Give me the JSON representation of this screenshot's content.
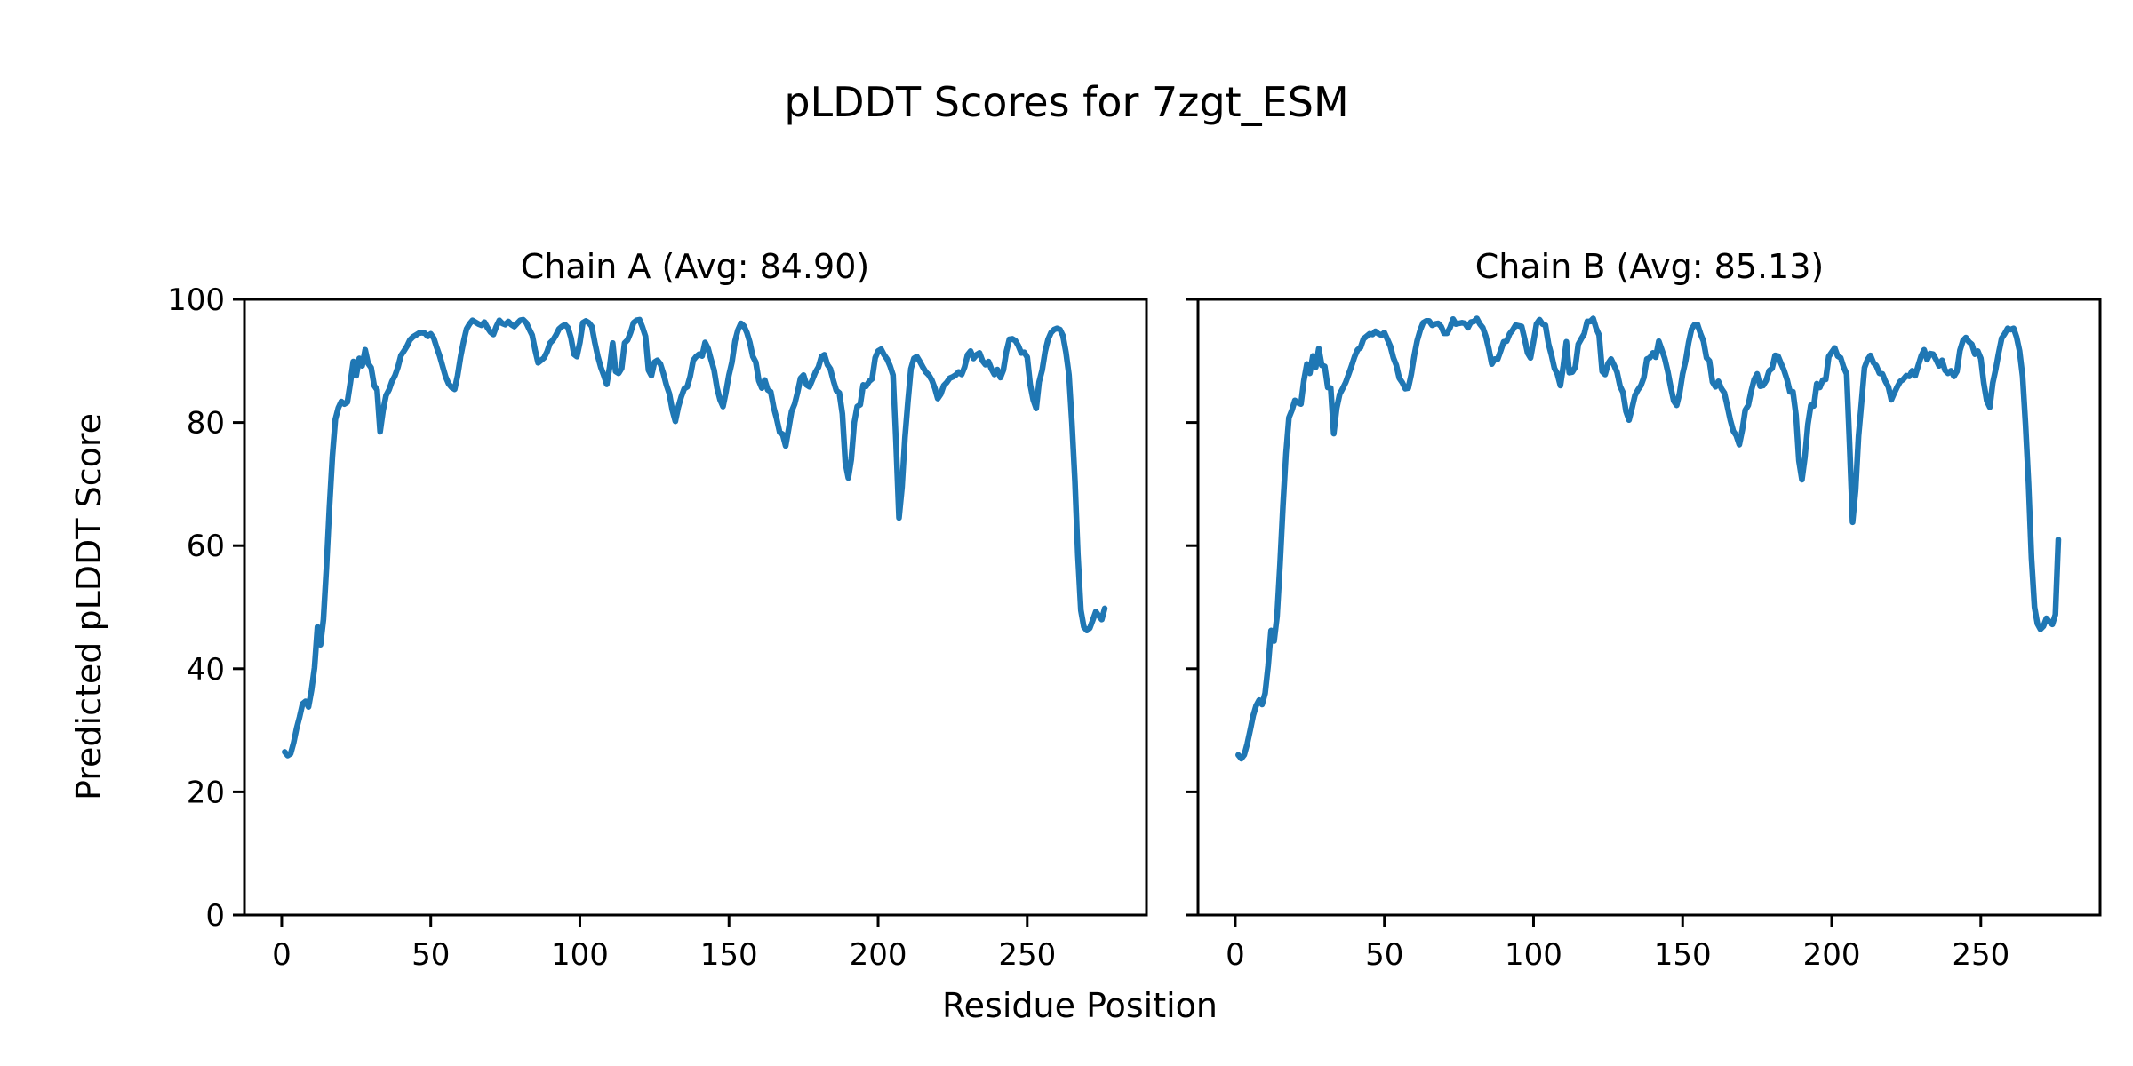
{
  "figure": {
    "suptitle": "pLDDT Scores for 7zgt_ESM",
    "xlabel": "Residue Position",
    "ylabel": "Predicted pLDDT Score",
    "background_color": "#ffffff",
    "axis_color": "#000000",
    "line_color": "#1f77b4"
  },
  "chart_data": {
    "type": "line",
    "title": "pLDDT Scores for 7zgt_ESM",
    "xlabel": "Residue Position",
    "ylabel": "Predicted pLDDT Score",
    "grid": false,
    "legend": false,
    "xlim": [
      -12.5,
      290
    ],
    "ylim": [
      0,
      100
    ],
    "xticks": [
      0,
      50,
      100,
      150,
      200,
      250
    ],
    "yticks": [
      0,
      20,
      40,
      60,
      80,
      100
    ],
    "x_start_residue": 1,
    "line_color": "#1f77b4",
    "panels": [
      {
        "title": "Chain A (Avg: 84.90)",
        "name": "Chain A",
        "avg": 84.9,
        "values": [
          26.5,
          25.9,
          26.2,
          28.0,
          30.3,
          32.2,
          34.3,
          34.7,
          33.8,
          36.5,
          40.2,
          46.8,
          43.9,
          48.0,
          56.5,
          66.0,
          74.5,
          80.5,
          82.4,
          83.4,
          83.0,
          83.3,
          86.4,
          89.9,
          87.6,
          90.4,
          89.2,
          91.8,
          89.6,
          88.9,
          86.0,
          85.3,
          78.5,
          81.9,
          84.4,
          85.3,
          86.7,
          87.6,
          89.0,
          90.9,
          91.6,
          92.4,
          93.4,
          93.9,
          94.2,
          94.5,
          94.6,
          94.5,
          94.0,
          94.4,
          93.7,
          92.2,
          90.8,
          89.1,
          87.4,
          86.3,
          85.7,
          85.4,
          87.6,
          90.7,
          93.1,
          95.2,
          96.0,
          96.6,
          96.3,
          96.0,
          95.8,
          96.3,
          95.4,
          94.7,
          94.3,
          95.6,
          96.6,
          96.1,
          95.9,
          96.4,
          95.9,
          95.6,
          96.1,
          96.6,
          96.7,
          96.2,
          95.2,
          94.2,
          91.8,
          89.7,
          90.1,
          90.5,
          91.5,
          92.9,
          93.4,
          94.2,
          95.2,
          95.6,
          95.9,
          95.4,
          93.8,
          91.1,
          90.7,
          93.0,
          96.2,
          96.5,
          96.2,
          95.6,
          93.0,
          90.8,
          89.0,
          87.7,
          86.2,
          89.0,
          92.9,
          88.3,
          88.0,
          88.8,
          92.9,
          93.4,
          94.6,
          96.2,
          96.6,
          96.7,
          95.5,
          94.0,
          88.5,
          87.6,
          89.8,
          90.1,
          89.5,
          88.0,
          86.1,
          84.7,
          82.0,
          80.2,
          82.5,
          84.2,
          85.5,
          85.8,
          87.5,
          90.1,
          90.7,
          91.1,
          90.8,
          93.0,
          92.0,
          90.2,
          88.5,
          85.6,
          83.7,
          82.6,
          85.0,
          87.7,
          89.8,
          93.2,
          95.0,
          96.1,
          95.7,
          94.6,
          93.0,
          90.7,
          89.8,
          86.8,
          85.6,
          86.9,
          85.3,
          85.0,
          82.4,
          80.6,
          78.4,
          78.1,
          76.2,
          79.0,
          81.8,
          83.0,
          84.9,
          87.2,
          87.7,
          86.1,
          85.8,
          87.0,
          88.2,
          89.0,
          90.7,
          91.0,
          89.4,
          88.7,
          86.8,
          85.2,
          84.8,
          81.4,
          73.5,
          71.0,
          74.0,
          80.0,
          82.6,
          82.9,
          86.1,
          85.9,
          86.7,
          87.1,
          90.5,
          91.6,
          91.9,
          91.0,
          90.3,
          89.2,
          87.7,
          77.0,
          64.5,
          69.5,
          77.5,
          83.5,
          88.7,
          90.4,
          90.7,
          89.9,
          89.0,
          88.2,
          87.7,
          86.9,
          85.6,
          83.9,
          84.6,
          86.0,
          86.5,
          87.2,
          87.4,
          87.7,
          88.2,
          87.8,
          89.0,
          91.0,
          91.6,
          90.4,
          91.0,
          91.3,
          90.0,
          89.4,
          89.9,
          88.7,
          87.8,
          88.6,
          87.3,
          88.5,
          91.5,
          93.5,
          93.6,
          93.3,
          92.5,
          91.3,
          91.4,
          90.6,
          86.2,
          83.7,
          82.3,
          86.6,
          88.5,
          91.5,
          93.5,
          94.6,
          95.1,
          95.3,
          95.1,
          94.1,
          91.4,
          87.7,
          80.0,
          70.5,
          58.5,
          49.5,
          46.8,
          46.2,
          46.6,
          47.9,
          49.3,
          48.6,
          48.0,
          49.8
        ]
      },
      {
        "title": "Chain B (Avg: 85.13)",
        "name": "Chain B",
        "avg": 85.13,
        "values": [
          26.0,
          25.4,
          26.0,
          27.8,
          30.0,
          32.4,
          34.0,
          34.9,
          34.2,
          36.0,
          40.5,
          46.2,
          44.5,
          48.5,
          57.0,
          66.5,
          75.0,
          80.8,
          82.0,
          83.6,
          83.2,
          83.0,
          86.8,
          89.5,
          88.0,
          90.8,
          89.0,
          92.0,
          89.3,
          89.1,
          85.7,
          85.6,
          78.2,
          82.3,
          84.6,
          85.5,
          86.5,
          87.8,
          89.2,
          90.7,
          91.8,
          92.2,
          93.6,
          94.0,
          94.4,
          94.3,
          94.8,
          94.4,
          94.2,
          94.6,
          93.5,
          92.4,
          90.5,
          89.3,
          87.2,
          86.5,
          85.5,
          85.6,
          87.8,
          90.9,
          93.3,
          95.0,
          96.2,
          96.5,
          96.5,
          95.8,
          96.0,
          96.1,
          95.6,
          94.5,
          94.5,
          95.4,
          96.8,
          96.0,
          96.1,
          96.2,
          96.1,
          95.4,
          96.3,
          96.4,
          96.9,
          96.0,
          95.4,
          94.0,
          92.0,
          89.5,
          90.3,
          90.3,
          91.7,
          93.1,
          93.2,
          94.4,
          95.0,
          95.8,
          95.7,
          95.6,
          93.6,
          91.3,
          90.5,
          93.2,
          96.0,
          96.7,
          96.0,
          95.8,
          92.8,
          91.0,
          88.8,
          87.9,
          86.0,
          89.2,
          93.1,
          88.1,
          88.2,
          89.0,
          92.7,
          93.6,
          94.4,
          96.4,
          96.4,
          96.9,
          95.3,
          94.2,
          88.3,
          87.8,
          89.6,
          90.3,
          89.3,
          88.2,
          85.9,
          84.9,
          81.8,
          80.4,
          82.3,
          84.4,
          85.3,
          86.0,
          87.3,
          90.3,
          90.5,
          91.3,
          90.6,
          93.2,
          91.8,
          90.4,
          88.3,
          85.8,
          83.5,
          82.8,
          84.8,
          87.9,
          90.0,
          93.0,
          95.2,
          95.9,
          95.9,
          94.4,
          93.2,
          90.5,
          90.0,
          86.6,
          85.8,
          86.7,
          85.5,
          84.8,
          82.6,
          80.4,
          78.6,
          77.9,
          76.4,
          78.8,
          82.0,
          82.8,
          85.1,
          87.0,
          87.9,
          85.9,
          86.0,
          86.8,
          88.4,
          88.8,
          90.9,
          90.8,
          89.6,
          88.5,
          87.0,
          85.0,
          85.0,
          81.2,
          73.8,
          70.7,
          74.3,
          79.7,
          82.8,
          82.7,
          86.3,
          85.7,
          86.9,
          87.0,
          90.7,
          91.4,
          92.1,
          90.8,
          90.5,
          89.0,
          87.9,
          76.5,
          63.8,
          69.0,
          77.8,
          83.3,
          88.9,
          90.2,
          90.9,
          89.7,
          89.2,
          88.0,
          87.9,
          86.7,
          85.8,
          83.7,
          84.8,
          85.8,
          86.7,
          87.0,
          87.6,
          87.5,
          88.4,
          87.6,
          89.2,
          90.8,
          91.8,
          90.2,
          91.2,
          91.1,
          90.2,
          89.2,
          90.1,
          88.5,
          88.0,
          88.4,
          87.5,
          88.3,
          91.7,
          93.3,
          93.8,
          93.1,
          92.7,
          91.1,
          91.6,
          90.4,
          86.4,
          83.5,
          82.5,
          86.4,
          88.7,
          91.3,
          93.7,
          94.4,
          95.3,
          95.1,
          95.3,
          93.9,
          91.6,
          87.5,
          79.7,
          70.0,
          58.0,
          50.0,
          47.3,
          46.4,
          46.9,
          48.2,
          47.6,
          47.2,
          48.8,
          61.0
        ]
      }
    ]
  }
}
